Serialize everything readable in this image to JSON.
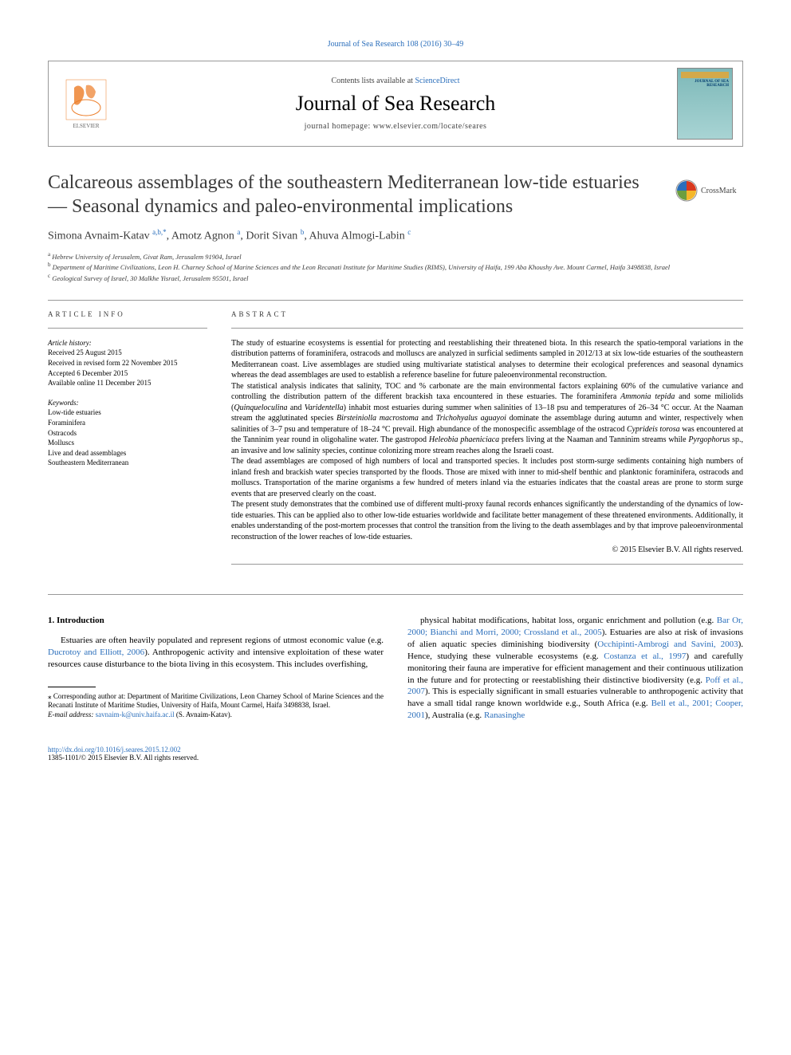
{
  "top_link": "Journal of Sea Research 108 (2016) 30–49",
  "header": {
    "contents_prefix": "Contents lists available at ",
    "contents_link": "ScienceDirect",
    "journal_name": "Journal of Sea Research",
    "homepage_prefix": "journal homepage: ",
    "homepage_url": "www.elsevier.com/locate/seares",
    "cover_title": "JOURNAL OF SEA RESEARCH"
  },
  "crossmark": "CrossMark",
  "title": "Calcareous assemblages of the southeastern Mediterranean low-tide estuaries — Seasonal dynamics and paleo-environmental implications",
  "authors": [
    {
      "name": "Simona Avnaim-Katav",
      "marks": "a,b,",
      "star": true
    },
    {
      "name": "Amotz Agnon",
      "marks": "a"
    },
    {
      "name": "Dorit Sivan",
      "marks": "b"
    },
    {
      "name": "Ahuva Almogi-Labin",
      "marks": "c"
    }
  ],
  "affiliations": [
    {
      "mark": "a",
      "text": "Hebrew University of Jerusalem, Givat Ram, Jerusalem 91904, Israel"
    },
    {
      "mark": "b",
      "text": "Department of Maritime Civilizations, Leon H. Charney School of Marine Sciences and the Leon Recanati Institute for Maritime Studies (RIMS), University of Haifa, 199 Aba Khoushy Ave. Mount Carmel, Haifa 3498838, Israel"
    },
    {
      "mark": "c",
      "text": "Geological Survey of Israel, 30 Malkhe Yisrael, Jerusalem 95501, Israel"
    }
  ],
  "article_info": {
    "heading": "ARTICLE INFO",
    "history_label": "Article history:",
    "history": [
      "Received 25 August 2015",
      "Received in revised form 22 November 2015",
      "Accepted 6 December 2015",
      "Available online 11 December 2015"
    ],
    "keywords_label": "Keywords:",
    "keywords": [
      "Low-tide estuaries",
      "Foraminifera",
      "Ostracods",
      "Molluscs",
      "Live and dead assemblages",
      "Southeastern Mediterranean"
    ]
  },
  "abstract": {
    "heading": "ABSTRACT",
    "paragraphs": [
      "The study of estuarine ecosystems is essential for protecting and reestablishing their threatened biota. In this research the spatio-temporal variations in the distribution patterns of foraminifera, ostracods and molluscs are analyzed in surficial sediments sampled in 2012/13 at six low-tide estuaries of the southeastern Mediterranean coast. Live assemblages are studied using multivariate statistical analyses to determine their ecological preferences and seasonal dynamics whereas the dead assemblages are used to establish a reference baseline for future paleoenvironmental reconstruction.",
      "The statistical analysis indicates that salinity, TOC and % carbonate are the main environmental factors explaining 60% of the cumulative variance and controlling the distribution pattern of the different brackish taxa encountered in these estuaries. The foraminifera Ammonia tepida and some miliolids (Quinqueloculina and Varidentella) inhabit most estuaries during summer when salinities of 13–18 psu and temperatures of 26–34 °C occur. At the Naaman stream the agglutinated species Birsteiniolla macrostoma and Trichohyalus aguayoi dominate the assemblage during autumn and winter, respectively when salinities of 3–7 psu and temperature of 18–24 °C prevail. High abundance of the monospecific assemblage of the ostracod Cyprideis torosa was encountered at the Tanninim year round in oligohaline water. The gastropod Heleobia phaeniciaca prefers living at the Naaman and Tanninim streams while Pyrgophorus sp., an invasive and low salinity species, continue colonizing more stream reaches along the Israeli coast.",
      "The dead assemblages are composed of high numbers of local and transported species. It includes post storm-surge sediments containing high numbers of inland fresh and brackish water species transported by the floods. Those are mixed with inner to mid-shelf benthic and planktonic foraminifera, ostracods and molluscs. Transportation of the marine organisms a few hundred of meters inland via the estuaries indicates that the coastal areas are prone to storm surge events that are preserved clearly on the coast.",
      "The present study demonstrates that the combined use of different multi-proxy faunal records enhances significantly the understanding of the dynamics of low-tide estuaries. This can be applied also to other low-tide estuaries worldwide and facilitate better management of these threatened environments. Additionally, it enables understanding of the post-mortem processes that control the transition from the living to the death assemblages and by that improve paleoenvironmental reconstruction of the lower reaches of low-tide estuaries."
    ],
    "copyright": "© 2015 Elsevier B.V. All rights reserved."
  },
  "body": {
    "section_heading": "1. Introduction",
    "col1_para": "Estuaries are often heavily populated and represent regions of utmost economic value (e.g. Ducrotoy and Elliott, 2006). Anthropogenic activity and intensive exploitation of these water resources cause disturbance to the biota living in this ecosystem. This includes overfishing,",
    "col1_cites": [
      "Ducrotoy and Elliott, 2006"
    ],
    "col2_para": "physical habitat modifications, habitat loss, organic enrichment and pollution (e.g. Bar Or, 2000; Bianchi and Morri, 2000; Crossland et al., 2005). Estuaries are also at risk of invasions of alien aquatic species diminishing biodiversity (Occhipinti-Ambrogi and Savini, 2003). Hence, studying these vulnerable ecosystems (e.g. Costanza et al., 1997) and carefully monitoring their fauna are imperative for efficient management and their continuous utilization in the future and for protecting or reestablishing their distinctive biodiversity (e.g. Poff et al., 2007). This is especially significant in small estuaries vulnerable to anthropogenic activity that have a small tidal range known worldwide e.g., South Africa (e.g. Bell et al., 2001; Cooper, 2001), Australia (e.g. Ranasinghe",
    "col2_cites": [
      "Bar Or, 2000; Bianchi and Morri, 2000; Crossland et al., 2005",
      "Occhipinti-Ambrogi and Savini, 2003",
      "Costanza et al., 1997",
      "Poff et al., 2007",
      "Bell et al., 2001; Cooper, 2001",
      "Ranasinghe"
    ]
  },
  "footnote": {
    "corr_label": "⁎ Corresponding author at: Department of Maritime Civilizations, Leon Charney School of Marine Sciences and the Recanati Institute of Maritime Studies, University of Haifa, Mount Carmel, Haifa 3498838, Israel.",
    "email_label": "E-mail address:",
    "email": "savnaim-k@univ.haifa.ac.il",
    "email_suffix": "(S. Avnaim-Katav)."
  },
  "footer": {
    "doi": "http://dx.doi.org/10.1016/j.seares.2015.12.002",
    "issn_line": "1385-1101/© 2015 Elsevier B.V. All rights reserved."
  },
  "colors": {
    "link": "#2a6ebb",
    "text": "#000000",
    "heading": "#3a3a3a",
    "border": "#999999",
    "elsevier_orange": "#ec7c26",
    "cover_bg": "#7db8b8",
    "crossmark_red": "#d9381e",
    "crossmark_yellow": "#f4b72a",
    "crossmark_blue": "#2a6ebb",
    "crossmark_green": "#6b9e3f"
  }
}
